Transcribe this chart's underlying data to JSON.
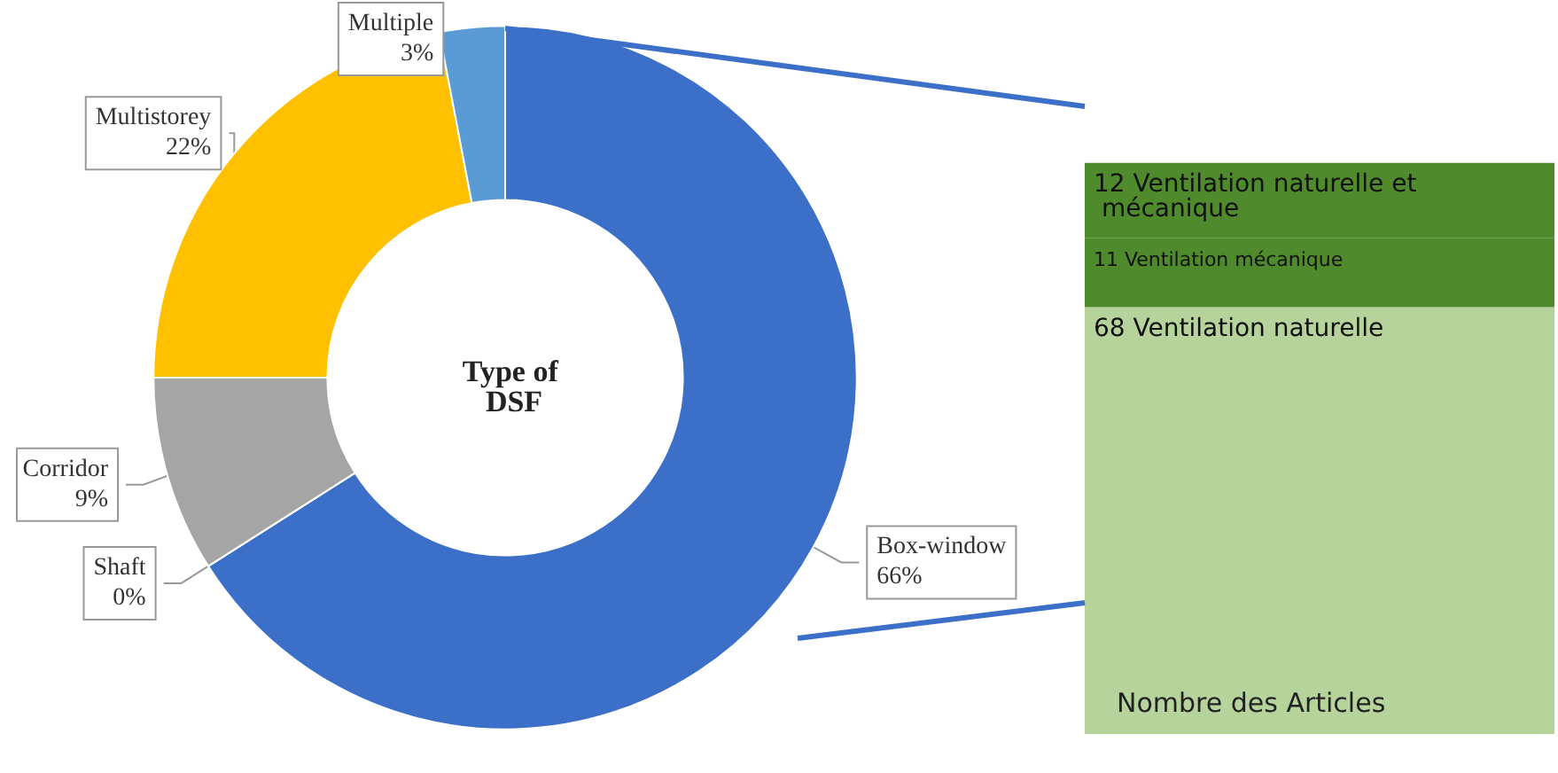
{
  "chart_data": [
    {
      "type": "donut",
      "title": "Type of DSF",
      "categories": [
        "Box-window",
        "Shaft",
        "Corridor",
        "Multistorey",
        "Multiple"
      ],
      "values": [
        66,
        0,
        9,
        22,
        3
      ],
      "colors": [
        "#3b6fc8",
        "#8c8c8c",
        "#a5a5a5",
        "#ffc000",
        "#5b9bd5"
      ],
      "value_labels": [
        "66%",
        "0%",
        "9%",
        "22%",
        "3%"
      ]
    },
    {
      "type": "bar",
      "stacked": true,
      "categories": [
        null
      ],
      "annotations": [
        "Nombre des Articles"
      ],
      "series": [
        {
          "color": "#b6d39c",
          "values": [
            68
          ],
          "value_labels": [
            "68 Ventilation naturelle"
          ]
        },
        {
          "color": "#4f8a2c",
          "values": [
            11
          ],
          "value_labels": [
            "11 Ventilation mécanique"
          ]
        },
        {
          "color": "#4f8a2c",
          "values": [
            12
          ],
          "value_labels": [
            "12 Ventilation naturelle et mécanique"
          ]
        }
      ]
    }
  ]
}
